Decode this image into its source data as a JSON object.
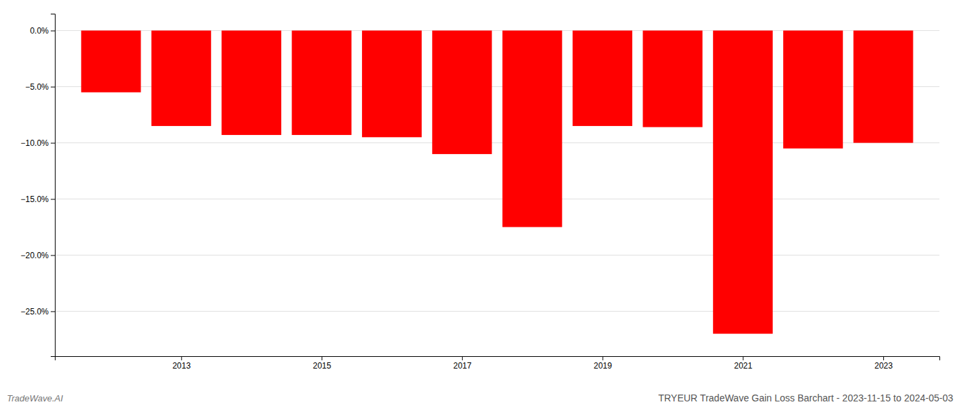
{
  "chart_data": {
    "type": "bar",
    "title": "TRYEUR TradeWave Gain Loss Barchart - 2023-11-15 to 2024-05-03",
    "annotations": [
      "TradeWave.AI"
    ],
    "x": [
      2012,
      2013,
      2014,
      2015,
      2016,
      2017,
      2018,
      2019,
      2020,
      2021,
      2022,
      2023
    ],
    "values": [
      -5.5,
      -8.5,
      -9.3,
      -9.3,
      -9.5,
      -11.0,
      -17.5,
      -8.5,
      -8.6,
      -27.0,
      -10.5,
      -10.0
    ],
    "color": "#ff0000",
    "xlim": [
      2011.2,
      2023.8
    ],
    "xticks": [
      2013,
      2015,
      2017,
      2019,
      2021,
      2023
    ],
    "ylim": [
      -29,
      1.5
    ],
    "yticks": [
      {
        "value": 0.0,
        "label": "0.0%"
      },
      {
        "value": -5.0,
        "label": "−5.0%"
      },
      {
        "value": -10.0,
        "label": "−10.0%"
      },
      {
        "value": -15.0,
        "label": "−15.0%"
      },
      {
        "value": -20.0,
        "label": "−20.0%"
      },
      {
        "value": -25.0,
        "label": "−25.0%"
      }
    ],
    "grid": true
  }
}
